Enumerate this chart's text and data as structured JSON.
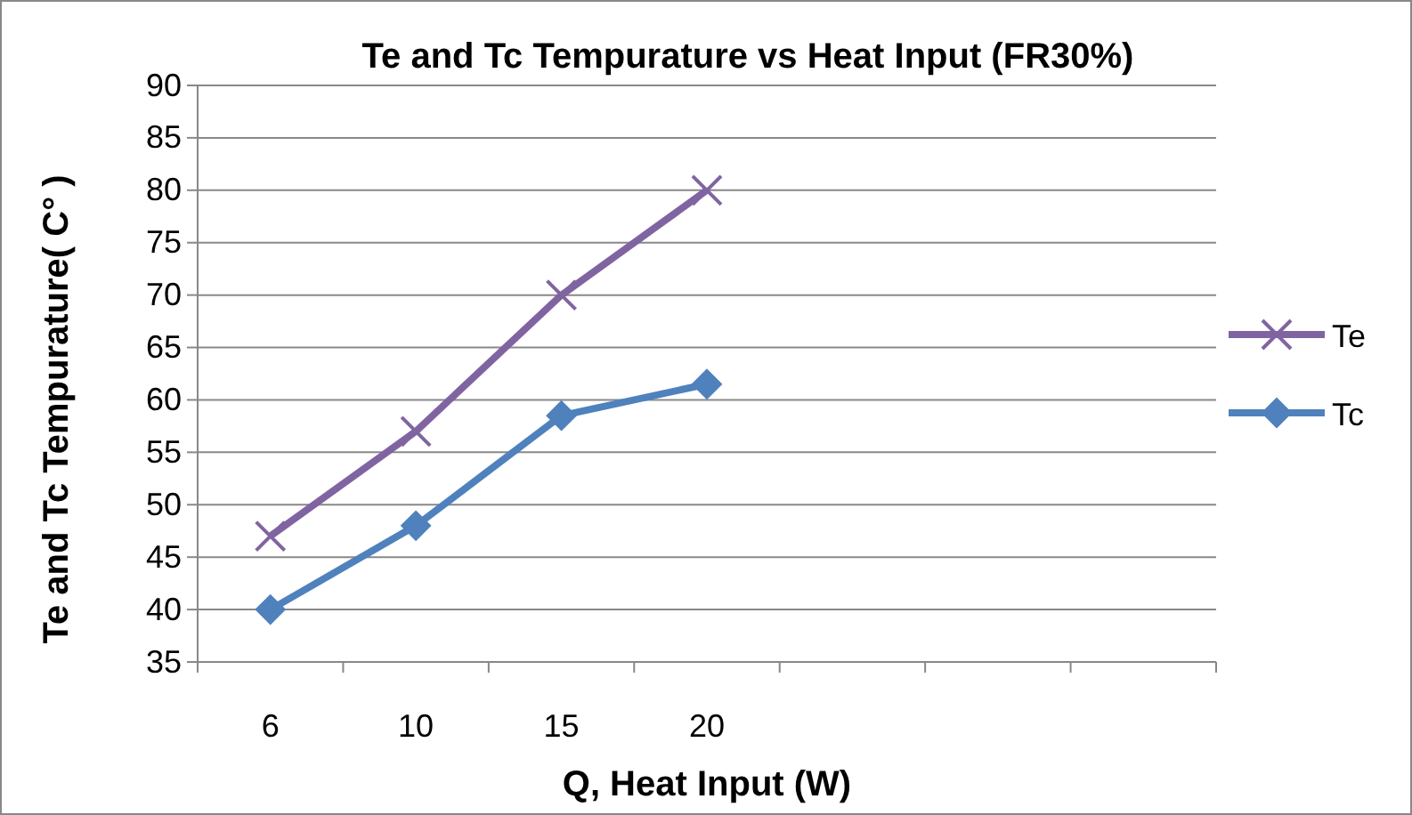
{
  "chart_data": {
    "type": "line",
    "title": "Te and Tc Tempurature vs Heat Input (FR30%)",
    "xlabel": "Q, Heat Input (W)",
    "ylabel": "Te and Tc Tempurature( C° )",
    "categories": [
      "6",
      "10",
      "15",
      "20",
      null,
      null,
      null
    ],
    "series": [
      {
        "name": "Te",
        "color": "#8064a2",
        "marker": "cross",
        "values": [
          47,
          57,
          70,
          80,
          null,
          null,
          null
        ]
      },
      {
        "name": "Tc",
        "color": "#4f81bd",
        "marker": "diamond",
        "values": [
          40,
          48,
          58.5,
          61.5,
          null,
          null,
          null
        ]
      }
    ],
    "ylim": [
      35,
      90
    ],
    "yticks": [
      35,
      40,
      45,
      50,
      55,
      60,
      65,
      70,
      75,
      80,
      85,
      90
    ],
    "grid": "y",
    "legend": "right"
  }
}
